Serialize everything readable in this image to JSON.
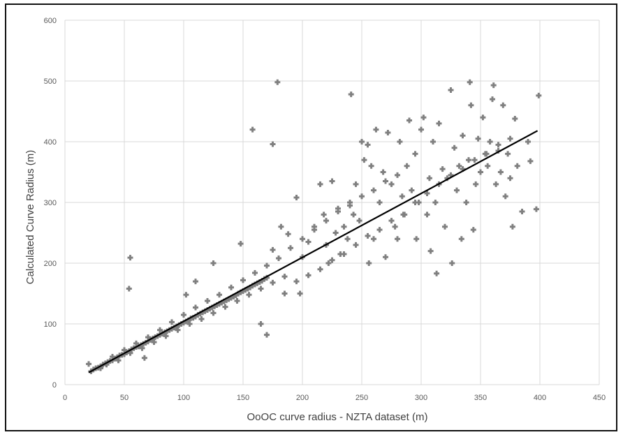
{
  "chart_data": {
    "type": "scatter",
    "title": "",
    "xlabel": "OoOC curve radius - NZTA dataset (m)",
    "ylabel": "Calculated Curve Radius (m)",
    "xlim": [
      0,
      450
    ],
    "ylim": [
      0,
      600
    ],
    "xticks": [
      0,
      50,
      100,
      150,
      200,
      250,
      300,
      350,
      400,
      450
    ],
    "yticks": [
      0,
      100,
      200,
      300,
      400,
      500,
      600
    ],
    "grid": true,
    "legend": "none",
    "marker_color": "#808080",
    "trendline": {
      "x": [
        20,
        398
      ],
      "y": [
        20,
        418
      ],
      "color": "#000000"
    },
    "series": [
      {
        "points": [
          [
            20,
            34
          ],
          [
            22,
            22
          ],
          [
            24,
            25
          ],
          [
            26,
            27
          ],
          [
            28,
            28
          ],
          [
            30,
            30
          ],
          [
            32,
            33
          ],
          [
            34,
            35
          ],
          [
            36,
            37
          ],
          [
            38,
            39
          ],
          [
            40,
            40
          ],
          [
            42,
            43
          ],
          [
            44,
            45
          ],
          [
            46,
            48
          ],
          [
            48,
            49
          ],
          [
            50,
            50
          ],
          [
            52,
            53
          ],
          [
            54,
            55
          ],
          [
            56,
            58
          ],
          [
            58,
            60
          ],
          [
            60,
            62
          ],
          [
            62,
            63
          ],
          [
            64,
            65
          ],
          [
            66,
            67
          ],
          [
            68,
            69
          ],
          [
            70,
            71
          ],
          [
            72,
            74
          ],
          [
            74,
            76
          ],
          [
            76,
            78
          ],
          [
            78,
            80
          ],
          [
            80,
            82
          ],
          [
            82,
            84
          ],
          [
            84,
            86
          ],
          [
            86,
            88
          ],
          [
            88,
            90
          ],
          [
            90,
            92
          ],
          [
            92,
            94
          ],
          [
            94,
            96
          ],
          [
            96,
            98
          ],
          [
            98,
            100
          ],
          [
            100,
            102
          ],
          [
            102,
            104
          ],
          [
            104,
            106
          ],
          [
            106,
            109
          ],
          [
            108,
            110
          ],
          [
            110,
            112
          ],
          [
            112,
            115
          ],
          [
            114,
            117
          ],
          [
            116,
            119
          ],
          [
            118,
            121
          ],
          [
            120,
            123
          ],
          [
            122,
            125
          ],
          [
            124,
            127
          ],
          [
            126,
            129
          ],
          [
            128,
            131
          ],
          [
            130,
            133
          ],
          [
            132,
            135
          ],
          [
            134,
            137
          ],
          [
            136,
            139
          ],
          [
            138,
            141
          ],
          [
            140,
            143
          ],
          [
            142,
            145
          ],
          [
            144,
            147
          ],
          [
            146,
            150
          ],
          [
            148,
            152
          ],
          [
            150,
            154
          ],
          [
            152,
            156
          ],
          [
            154,
            158
          ],
          [
            156,
            160
          ],
          [
            158,
            163
          ],
          [
            160,
            165
          ],
          [
            162,
            167
          ],
          [
            164,
            169
          ],
          [
            166,
            171
          ],
          [
            168,
            174
          ],
          [
            170,
            176
          ],
          [
            30,
            27
          ],
          [
            35,
            33
          ],
          [
            45,
            40
          ],
          [
            55,
            52
          ],
          [
            65,
            60
          ],
          [
            75,
            70
          ],
          [
            85,
            80
          ],
          [
            95,
            90
          ],
          [
            105,
            100
          ],
          [
            115,
            108
          ],
          [
            125,
            118
          ],
          [
            135,
            128
          ],
          [
            145,
            138
          ],
          [
            155,
            148
          ],
          [
            165,
            158
          ],
          [
            175,
            168
          ],
          [
            185,
            178
          ],
          [
            40,
            46
          ],
          [
            50,
            57
          ],
          [
            60,
            68
          ],
          [
            70,
            78
          ],
          [
            80,
            90
          ],
          [
            90,
            103
          ],
          [
            100,
            115
          ],
          [
            110,
            127
          ],
          [
            120,
            138
          ],
          [
            130,
            148
          ],
          [
            140,
            160
          ],
          [
            150,
            172
          ],
          [
            160,
            184
          ],
          [
            170,
            196
          ],
          [
            180,
            208
          ],
          [
            55,
            209
          ],
          [
            54,
            158
          ],
          [
            67,
            44
          ],
          [
            102,
            148
          ],
          [
            110,
            170
          ],
          [
            125,
            200
          ],
          [
            148,
            232
          ],
          [
            158,
            420
          ],
          [
            175,
            396
          ],
          [
            179,
            498
          ],
          [
            170,
            82
          ],
          [
            165,
            100
          ],
          [
            175,
            222
          ],
          [
            182,
            260
          ],
          [
            188,
            248
          ],
          [
            195,
            308
          ],
          [
            198,
            150
          ],
          [
            200,
            210
          ],
          [
            205,
            235
          ],
          [
            210,
            260
          ],
          [
            215,
            330
          ],
          [
            218,
            280
          ],
          [
            220,
            230
          ],
          [
            222,
            200
          ],
          [
            225,
            335
          ],
          [
            228,
            250
          ],
          [
            230,
            290
          ],
          [
            232,
            215
          ],
          [
            235,
            260
          ],
          [
            238,
            240
          ],
          [
            240,
            300
          ],
          [
            241,
            478
          ],
          [
            243,
            280
          ],
          [
            245,
            330
          ],
          [
            248,
            270
          ],
          [
            250,
            400
          ],
          [
            252,
            370
          ],
          [
            255,
            395
          ],
          [
            256,
            200
          ],
          [
            258,
            360
          ],
          [
            260,
            240
          ],
          [
            262,
            420
          ],
          [
            265,
            300
          ],
          [
            268,
            350
          ],
          [
            270,
            210
          ],
          [
            272,
            415
          ],
          [
            275,
            330
          ],
          [
            278,
            260
          ],
          [
            280,
            240
          ],
          [
            282,
            400
          ],
          [
            284,
            310
          ],
          [
            286,
            280
          ],
          [
            288,
            360
          ],
          [
            290,
            435
          ],
          [
            292,
            320
          ],
          [
            295,
            380
          ],
          [
            296,
            240
          ],
          [
            298,
            300
          ],
          [
            300,
            420
          ],
          [
            302,
            440
          ],
          [
            305,
            280
          ],
          [
            307,
            340
          ],
          [
            308,
            220
          ],
          [
            310,
            400
          ],
          [
            312,
            300
          ],
          [
            313,
            183
          ],
          [
            315,
            430
          ],
          [
            318,
            355
          ],
          [
            320,
            260
          ],
          [
            322,
            340
          ],
          [
            325,
            485
          ],
          [
            326,
            200
          ],
          [
            328,
            390
          ],
          [
            330,
            320
          ],
          [
            332,
            360
          ],
          [
            334,
            240
          ],
          [
            335,
            410
          ],
          [
            338,
            300
          ],
          [
            340,
            370
          ],
          [
            341,
            498
          ],
          [
            342,
            460
          ],
          [
            344,
            255
          ],
          [
            346,
            330
          ],
          [
            348,
            405
          ],
          [
            350,
            350
          ],
          [
            352,
            440
          ],
          [
            354,
            380
          ],
          [
            356,
            360
          ],
          [
            358,
            400
          ],
          [
            360,
            470
          ],
          [
            361,
            493
          ],
          [
            363,
            330
          ],
          [
            365,
            385
          ],
          [
            367,
            350
          ],
          [
            369,
            460
          ],
          [
            371,
            310
          ],
          [
            373,
            380
          ],
          [
            375,
            340
          ],
          [
            377,
            260
          ],
          [
            379,
            438
          ],
          [
            381,
            360
          ],
          [
            385,
            285
          ],
          [
            390,
            400
          ],
          [
            392,
            368
          ],
          [
            397,
            289
          ],
          [
            399,
            476
          ],
          [
            185,
            150
          ],
          [
            195,
            170
          ],
          [
            205,
            180
          ],
          [
            215,
            190
          ],
          [
            225,
            205
          ],
          [
            235,
            215
          ],
          [
            245,
            230
          ],
          [
            255,
            245
          ],
          [
            265,
            255
          ],
          [
            275,
            270
          ],
          [
            285,
            280
          ],
          [
            295,
            300
          ],
          [
            305,
            315
          ],
          [
            315,
            330
          ],
          [
            325,
            345
          ],
          [
            335,
            355
          ],
          [
            345,
            370
          ],
          [
            355,
            380
          ],
          [
            365,
            395
          ],
          [
            375,
            405
          ],
          [
            190,
            225
          ],
          [
            200,
            240
          ],
          [
            210,
            255
          ],
          [
            220,
            270
          ],
          [
            230,
            285
          ],
          [
            240,
            295
          ],
          [
            250,
            310
          ],
          [
            260,
            320
          ],
          [
            270,
            335
          ],
          [
            280,
            345
          ]
        ]
      }
    ]
  }
}
